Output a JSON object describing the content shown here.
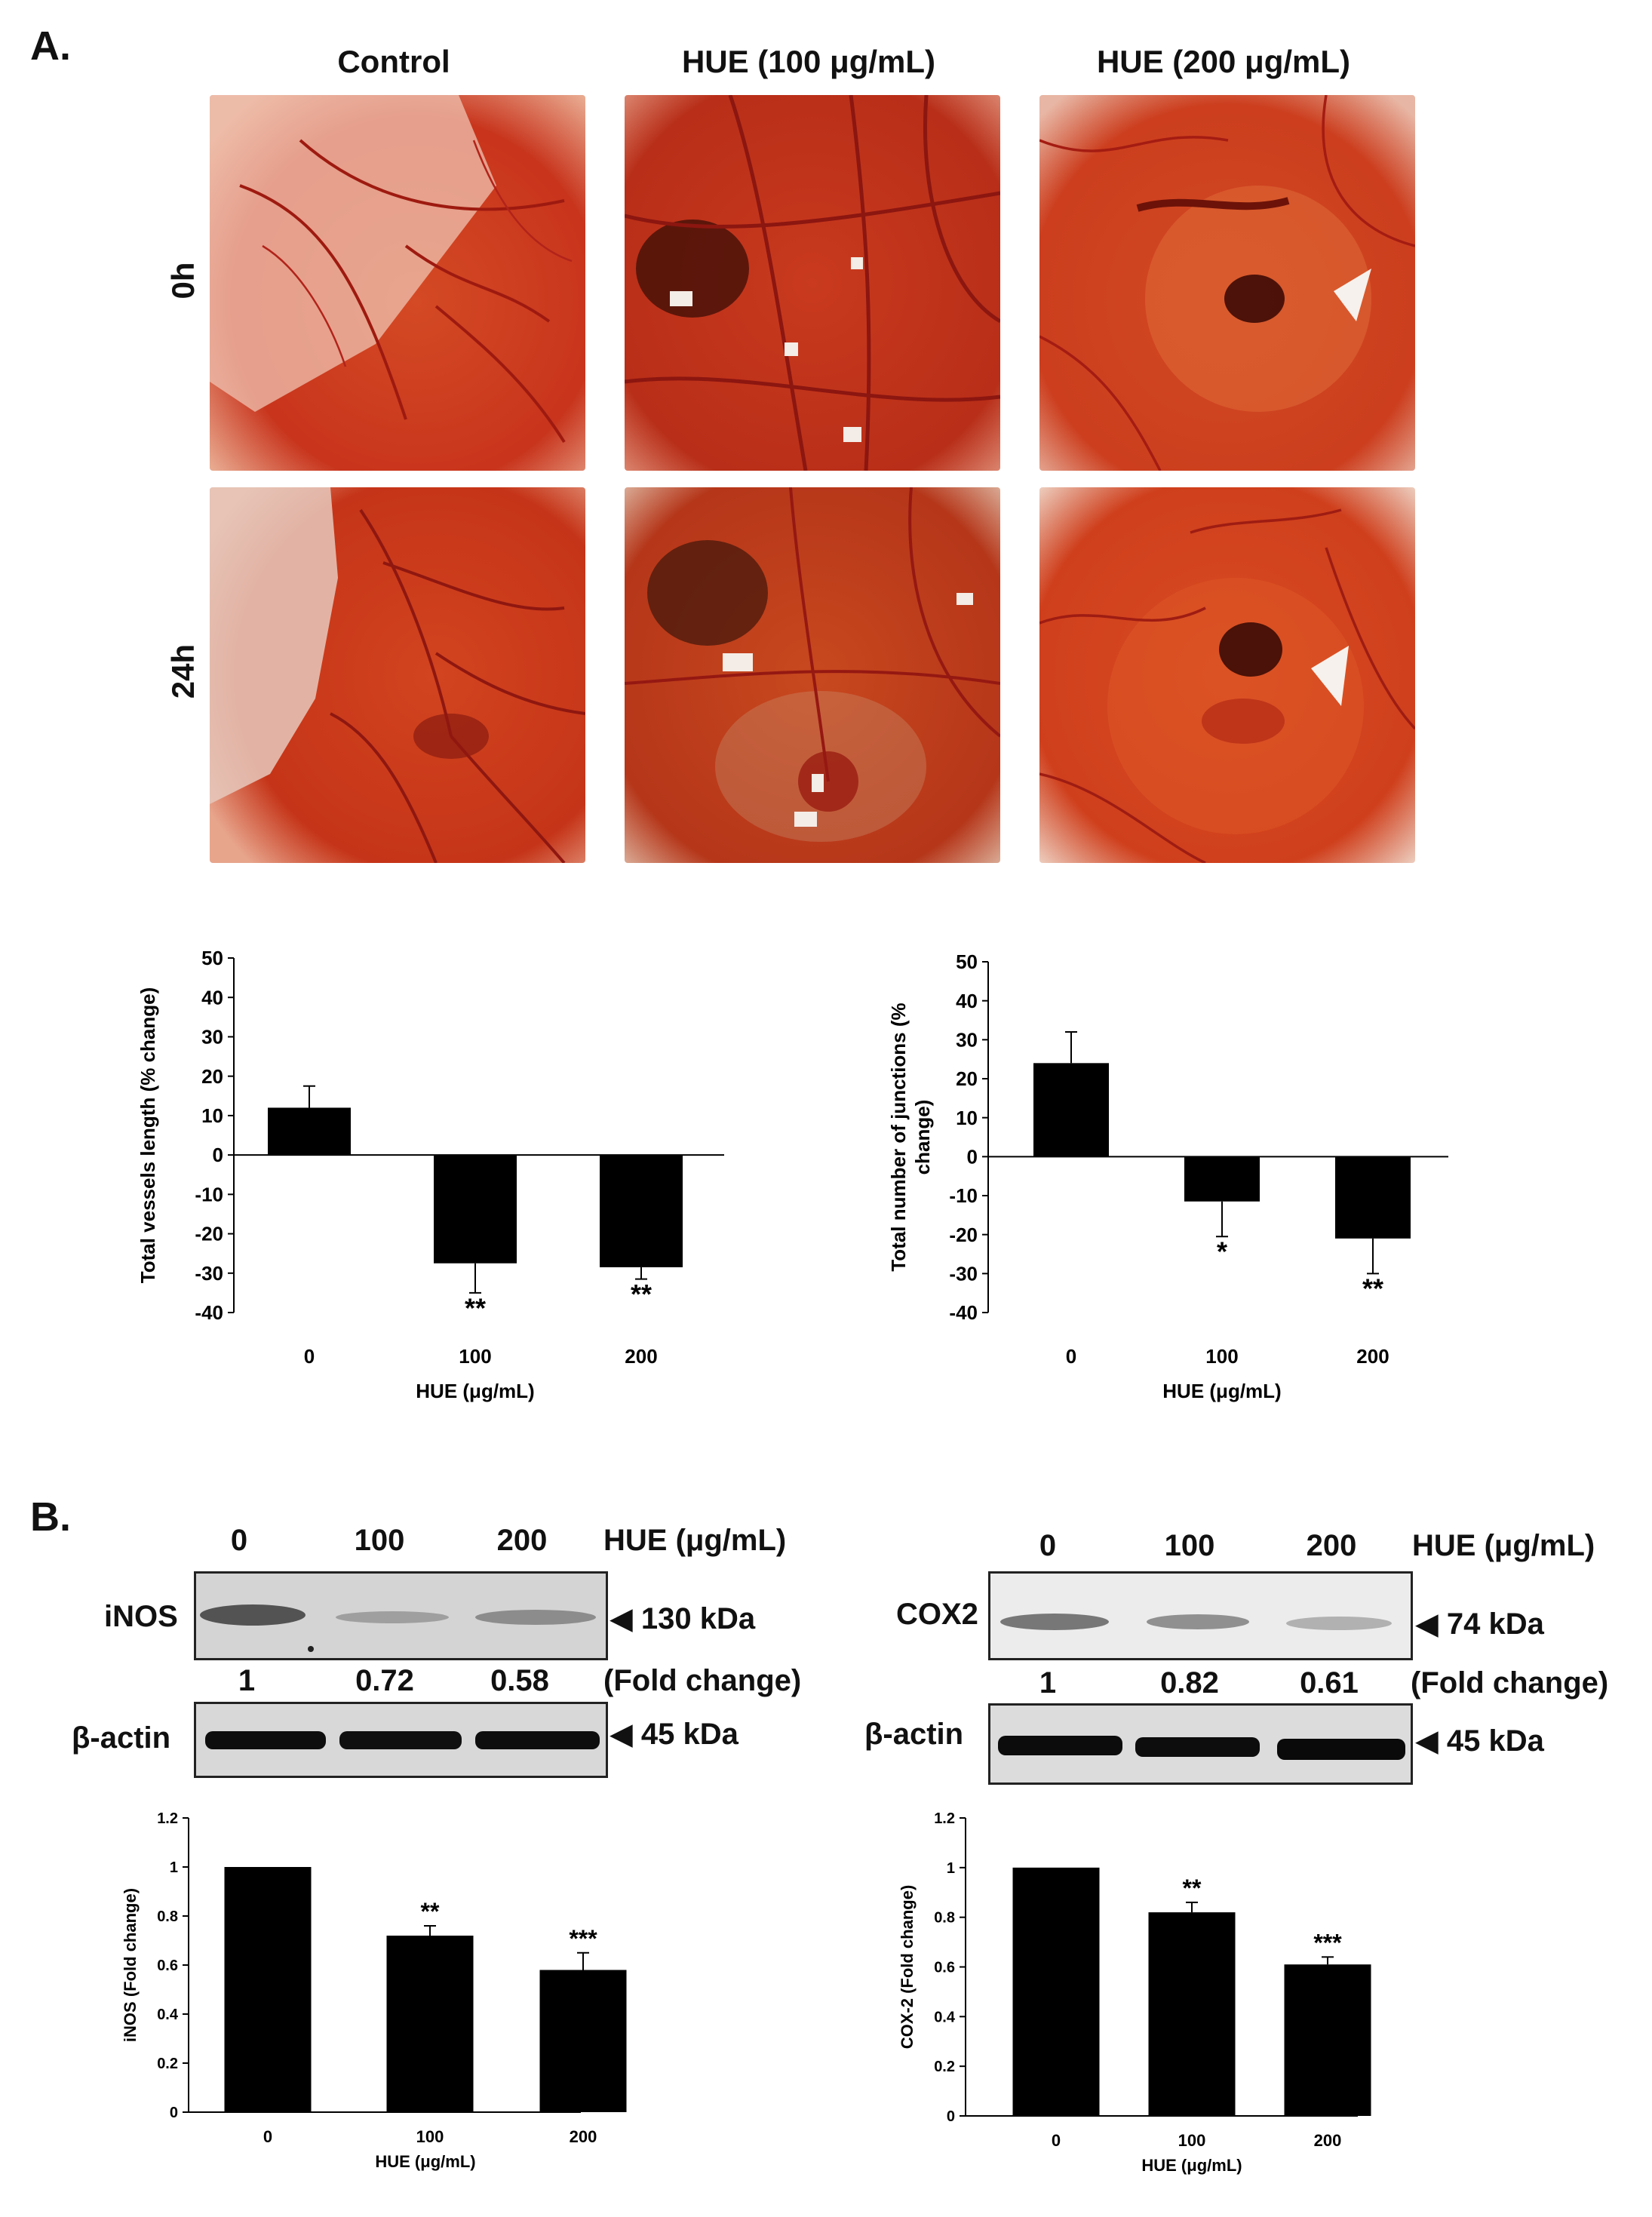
{
  "panel_a": {
    "letter": "A.",
    "columns": [
      "Control",
      "HUE (100 μg/mL)",
      "HUE (200 μg/mL)"
    ],
    "rows": [
      "0h",
      "24h"
    ],
    "photo_colors": {
      "base": "#c8341c",
      "mid": "#d9542a",
      "light": "#e8825a",
      "rim": "#f2d6cc"
    }
  },
  "panel_b": {
    "letter": "B.",
    "left_blot": {
      "lanes": [
        "0",
        "100",
        "200"
      ],
      "lane_title": "HUE (μg/mL)",
      "protein": "iNOS",
      "protein_kda": "◀ 130 kDa",
      "fold_values": [
        "1",
        "0.72",
        "0.58"
      ],
      "fold_label": "(Fold change)",
      "loading": "β-actin",
      "loading_kda": "◀ 45 kDa"
    },
    "right_blot": {
      "lanes": [
        "0",
        "100",
        "200"
      ],
      "lane_title": "HUE (μg/mL)",
      "protein": "COX2",
      "protein_kda": "◀ 74 kDa",
      "fold_values": [
        "1",
        "0.82",
        "0.61"
      ],
      "fold_label": "(Fold change)",
      "loading": "β-actin",
      "loading_kda": "◀ 45 kDa"
    }
  },
  "chart_data": [
    {
      "type": "bar",
      "id": "vessels",
      "categories": [
        "0",
        "100",
        "200"
      ],
      "values": [
        12,
        -27.5,
        -28.5
      ],
      "errors": [
        5.5,
        7.5,
        3
      ],
      "significance": [
        "",
        "**",
        "**"
      ],
      "xlabel": "HUE (μg/mL)",
      "ylabel": "Total vessels length (% change)",
      "ylim": [
        -40,
        50
      ],
      "yticks": [
        "50",
        "40",
        "30",
        "20",
        "10",
        "0",
        "-10",
        "-20",
        "-30",
        "-40"
      ],
      "bar_color": "#000000"
    },
    {
      "type": "bar",
      "id": "junctions",
      "categories": [
        "0",
        "100",
        "200"
      ],
      "values": [
        24,
        -11.5,
        -21
      ],
      "errors": [
        8,
        9,
        9
      ],
      "significance": [
        "",
        "*",
        "**"
      ],
      "xlabel": "HUE (μg/mL)",
      "ylabel_lines": [
        "Total number of junctions (%",
        "change)"
      ],
      "ylim": [
        -40,
        50
      ],
      "yticks": [
        "50",
        "40",
        "30",
        "20",
        "10",
        "0",
        "-10",
        "-20",
        "-30",
        "-40"
      ],
      "bar_color": "#000000"
    },
    {
      "type": "bar",
      "id": "inos",
      "categories": [
        "0",
        "100",
        "200"
      ],
      "values": [
        1.0,
        0.72,
        0.58
      ],
      "errors": [
        0.0,
        0.04,
        0.07
      ],
      "significance": [
        "",
        "**",
        "***"
      ],
      "xlabel": "HUE (μg/mL)",
      "ylabel": "iNOS  (Fold change)",
      "ylim": [
        0,
        1.2
      ],
      "yticks": [
        "1.2",
        "1",
        "0.8",
        "0.6",
        "0.4",
        "0.2",
        "0"
      ],
      "bar_color": "#000000"
    },
    {
      "type": "bar",
      "id": "cox2",
      "categories": [
        "0",
        "100",
        "200"
      ],
      "values": [
        1.0,
        0.82,
        0.61
      ],
      "errors": [
        0.0,
        0.04,
        0.03
      ],
      "significance": [
        "",
        "**",
        "***"
      ],
      "xlabel": "HUE (μg/mL)",
      "ylabel": "COX-2  (Fold change)",
      "ylim": [
        0,
        1.2
      ],
      "yticks": [
        "1.2",
        "1",
        "0.8",
        "0.6",
        "0.4",
        "0.2",
        "0"
      ],
      "bar_color": "#000000"
    }
  ]
}
